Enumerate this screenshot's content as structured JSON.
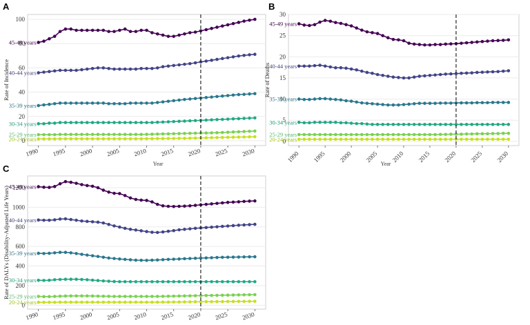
{
  "colors": {
    "45-49 years": "#440154",
    "40-44 years": "#414487",
    "35-39 years": "#2a788e",
    "30-34 years": "#22a884",
    "25-29 years": "#7ad151",
    "20-24 years": "#c7e020"
  },
  "chart_data": [
    {
      "panel": "A",
      "type": "line",
      "xlabel": "Year",
      "ylabel": "Rate of Incidence",
      "xlim": [
        1988,
        2032
      ],
      "ylim": [
        -4,
        104
      ],
      "xticks": [
        1990,
        1995,
        2000,
        2005,
        2010,
        2015,
        2020,
        2025,
        2030
      ],
      "yticks": [
        0,
        20,
        40,
        60,
        80,
        100
      ],
      "vline": 2020,
      "series": [
        {
          "name": "45-49 years",
          "values": [
            81,
            82,
            84,
            86,
            90,
            92,
            92,
            91,
            91,
            91,
            91,
            91,
            91,
            90,
            90,
            91,
            92,
            90,
            90,
            91,
            91,
            89,
            88,
            87,
            86,
            86,
            87,
            88,
            89,
            89.5,
            90.5,
            91.5,
            92.5,
            93.5,
            94.5,
            95.5,
            96.5,
            97.5,
            98.5,
            99.3,
            100
          ]
        },
        {
          "name": "40-44 years",
          "values": [
            56,
            56.5,
            57,
            57.5,
            58,
            58,
            58,
            58,
            58.5,
            59,
            59.5,
            60,
            60,
            59.5,
            59,
            59,
            59,
            59,
            59,
            59.5,
            59.5,
            59.5,
            60,
            61,
            61.5,
            62,
            62.5,
            63,
            63.5,
            64.2,
            64.9,
            65.6,
            66.3,
            67,
            67.7,
            68.4,
            69.1,
            69.8,
            70.3,
            70.8,
            71.2
          ]
        },
        {
          "name": "35-39 years",
          "values": [
            29,
            29.5,
            30,
            30.5,
            31,
            31,
            31,
            31,
            31,
            31,
            31,
            31,
            31,
            30.5,
            30.5,
            30.5,
            30.5,
            31,
            31,
            31,
            31,
            31,
            31.5,
            32,
            32.5,
            33,
            33.5,
            34,
            34.4,
            34.8,
            35.2,
            35.6,
            36,
            36.4,
            36.8,
            37.2,
            37.6,
            38,
            38.2,
            38.5,
            38.8
          ]
        },
        {
          "name": "30-34 years",
          "values": [
            14,
            14,
            14.5,
            14.5,
            15,
            15,
            15,
            15,
            15,
            15,
            15,
            15,
            15,
            15,
            15,
            15,
            15,
            15,
            15,
            15,
            15,
            15,
            15.2,
            15.4,
            15.6,
            15.8,
            16,
            16.2,
            16.4,
            16.6,
            16.8,
            17,
            17.2,
            17.4,
            17.6,
            17.8,
            18,
            18.2,
            18.4,
            18.6,
            18.8
          ]
        },
        {
          "name": "25-29 years",
          "values": [
            5,
            5,
            5,
            5,
            5.2,
            5.2,
            5.2,
            5.2,
            5.2,
            5.2,
            5.2,
            5.2,
            5.2,
            5.2,
            5.2,
            5.2,
            5.2,
            5.2,
            5.2,
            5.2,
            5.3,
            5.4,
            5.5,
            5.6,
            5.7,
            5.8,
            5.9,
            6,
            6.1,
            6.2,
            6.3,
            6.4,
            6.5,
            6.6,
            6.8,
            7,
            7.2,
            7.4,
            7.6,
            7.8,
            8
          ]
        },
        {
          "name": "20-24 years",
          "values": [
            1.5,
            1.5,
            1.5,
            1.5,
            1.6,
            1.6,
            1.6,
            1.6,
            1.6,
            1.6,
            1.6,
            1.6,
            1.6,
            1.6,
            1.6,
            1.6,
            1.6,
            1.6,
            1.6,
            1.6,
            1.7,
            1.7,
            1.8,
            1.8,
            1.9,
            1.9,
            2,
            2,
            2.1,
            2.2,
            2.3,
            2.4,
            2.5,
            2.6,
            2.7,
            2.8,
            2.9,
            3,
            3.1,
            3.2,
            3.3
          ]
        }
      ]
    },
    {
      "panel": "B",
      "type": "line",
      "xlabel": "Year",
      "ylabel": "Rate of Deaths",
      "xlim": [
        1988,
        2032
      ],
      "ylim": [
        -1,
        30
      ],
      "xticks": [
        1990,
        1995,
        2000,
        2005,
        2010,
        2015,
        2020,
        2025,
        2030
      ],
      "yticks": [
        0,
        5,
        10,
        15,
        20,
        25,
        30
      ],
      "vline": 2020,
      "series": [
        {
          "name": "45-49 years",
          "values": [
            27.8,
            27.5,
            27.4,
            27.6,
            28.2,
            28.6,
            28.4,
            28.1,
            27.9,
            27.6,
            27.3,
            26.8,
            26.3,
            25.9,
            25.7,
            25.5,
            25,
            24.5,
            24.1,
            24,
            23.8,
            23.2,
            23,
            22.9,
            22.8,
            22.8,
            22.9,
            22.9,
            23,
            23.05,
            23.1,
            23.2,
            23.3,
            23.4,
            23.5,
            23.6,
            23.7,
            23.8,
            23.85,
            23.9,
            24
          ]
        },
        {
          "name": "40-44 years",
          "values": [
            17.8,
            17.8,
            17.8,
            17.9,
            18,
            17.8,
            17.6,
            17.4,
            17.4,
            17.3,
            17.1,
            16.9,
            16.6,
            16.3,
            16.1,
            15.8,
            15.6,
            15.4,
            15.2,
            15.1,
            15,
            15,
            15.2,
            15.4,
            15.5,
            15.6,
            15.7,
            15.8,
            15.9,
            15.95,
            16,
            16.1,
            16.15,
            16.2,
            16.3,
            16.35,
            16.4,
            16.45,
            16.5,
            16.6,
            16.7
          ]
        },
        {
          "name": "35-39 years",
          "values": [
            10,
            9.9,
            9.9,
            10,
            10.1,
            10.1,
            10,
            9.9,
            9.8,
            9.6,
            9.5,
            9.3,
            9.1,
            9,
            8.9,
            8.8,
            8.7,
            8.6,
            8.6,
            8.6,
            8.7,
            8.8,
            8.9,
            9,
            9,
            9,
            9,
            9.05,
            9.05,
            9.05,
            9.1,
            9.1,
            9.1,
            9.1,
            9.15,
            9.15,
            9.15,
            9.2,
            9.2,
            9.2,
            9.2
          ]
        },
        {
          "name": "30-34 years",
          "values": [
            4.5,
            4.4,
            4.4,
            4.5,
            4.5,
            4.5,
            4.5,
            4.5,
            4.4,
            4.4,
            4.3,
            4.2,
            4.2,
            4.1,
            4,
            4,
            4,
            4,
            4,
            4,
            4,
            4,
            4,
            4,
            4,
            4,
            4,
            4,
            4,
            4,
            4,
            4,
            4,
            4,
            4,
            4,
            4,
            4,
            4,
            4,
            4
          ]
        },
        {
          "name": "25-29 years",
          "values": [
            1.6,
            1.6,
            1.6,
            1.6,
            1.6,
            1.6,
            1.6,
            1.6,
            1.6,
            1.6,
            1.6,
            1.6,
            1.6,
            1.6,
            1.6,
            1.6,
            1.6,
            1.6,
            1.6,
            1.6,
            1.6,
            1.6,
            1.6,
            1.6,
            1.6,
            1.6,
            1.6,
            1.65,
            1.65,
            1.7,
            1.7,
            1.7,
            1.75,
            1.75,
            1.8,
            1.8,
            1.8,
            1.85,
            1.85,
            1.9,
            1.9
          ]
        },
        {
          "name": "20-24 years",
          "values": [
            0.5,
            0.5,
            0.5,
            0.5,
            0.5,
            0.5,
            0.5,
            0.5,
            0.5,
            0.5,
            0.5,
            0.5,
            0.5,
            0.5,
            0.5,
            0.5,
            0.5,
            0.5,
            0.5,
            0.5,
            0.5,
            0.5,
            0.5,
            0.5,
            0.5,
            0.5,
            0.5,
            0.5,
            0.5,
            0.5,
            0.5,
            0.5,
            0.5,
            0.5,
            0.5,
            0.5,
            0.5,
            0.5,
            0.5,
            0.5,
            0.5
          ]
        }
      ]
    },
    {
      "panel": "C",
      "type": "line",
      "xlabel": "Year",
      "ylabel": "Rate of DALYs (Disability-Adjusted Life Years)",
      "xlim": [
        1988,
        2032
      ],
      "ylim": [
        -40,
        1320
      ],
      "xticks": [
        1990,
        1995,
        2000,
        2005,
        2010,
        2015,
        2020,
        2025,
        2030
      ],
      "yticks": [
        0,
        200,
        400,
        600,
        800,
        1000,
        1200
      ],
      "vline": 2020,
      "series": [
        {
          "name": "45-49 years",
          "values": [
            1210,
            1205,
            1203,
            1212,
            1240,
            1262,
            1255,
            1245,
            1232,
            1222,
            1215,
            1200,
            1175,
            1155,
            1143,
            1140,
            1120,
            1095,
            1080,
            1073,
            1070,
            1055,
            1030,
            1015,
            1010,
            1008,
            1010,
            1012,
            1015,
            1020,
            1025,
            1030,
            1035,
            1040,
            1045,
            1050,
            1053,
            1056,
            1060,
            1063,
            1065
          ]
        },
        {
          "name": "40-44 years",
          "values": [
            870,
            868,
            868,
            872,
            880,
            882,
            875,
            868,
            860,
            856,
            852,
            848,
            840,
            825,
            810,
            798,
            785,
            775,
            768,
            760,
            752,
            745,
            743,
            748,
            755,
            762,
            770,
            775,
            780,
            785,
            789,
            793,
            797,
            801,
            805,
            809,
            813,
            817,
            820,
            823,
            826
          ]
        },
        {
          "name": "35-39 years",
          "values": [
            530,
            528,
            530,
            535,
            540,
            540,
            535,
            528,
            520,
            512,
            505,
            498,
            490,
            482,
            477,
            472,
            468,
            464,
            460,
            459,
            458,
            460,
            462,
            465,
            468,
            470,
            472,
            475,
            477,
            479,
            481,
            483,
            485,
            487,
            489,
            490,
            491,
            492,
            493,
            494,
            495
          ]
        },
        {
          "name": "30-34 years",
          "values": [
            255,
            253,
            255,
            260,
            263,
            265,
            265,
            265,
            263,
            260,
            256,
            252,
            248,
            245,
            242,
            240,
            240,
            240,
            240,
            240,
            240,
            240,
            240,
            240,
            240,
            240,
            240,
            240,
            240,
            240,
            240,
            240,
            240,
            240,
            240,
            240,
            240,
            240,
            240,
            240,
            240
          ]
        },
        {
          "name": "25-29 years",
          "values": [
            90,
            88,
            88,
            90,
            92,
            94,
            95,
            95,
            95,
            95,
            94,
            93,
            92,
            91,
            90,
            90,
            90,
            90,
            90,
            90,
            90,
            90,
            90,
            91,
            92,
            93,
            94,
            95,
            96,
            97,
            98,
            99,
            100,
            101,
            102,
            103,
            104,
            105,
            106,
            107,
            108
          ]
        },
        {
          "name": "20-24 years",
          "values": [
            30,
            30,
            30,
            30,
            31,
            31,
            31,
            31,
            31,
            31,
            31,
            31,
            31,
            31,
            31,
            31,
            31,
            31,
            31,
            31,
            31,
            31,
            31,
            32,
            32,
            33,
            33,
            34,
            34,
            35,
            35,
            36,
            36,
            37,
            37,
            38,
            38,
            39,
            39,
            40,
            40
          ]
        }
      ]
    }
  ]
}
